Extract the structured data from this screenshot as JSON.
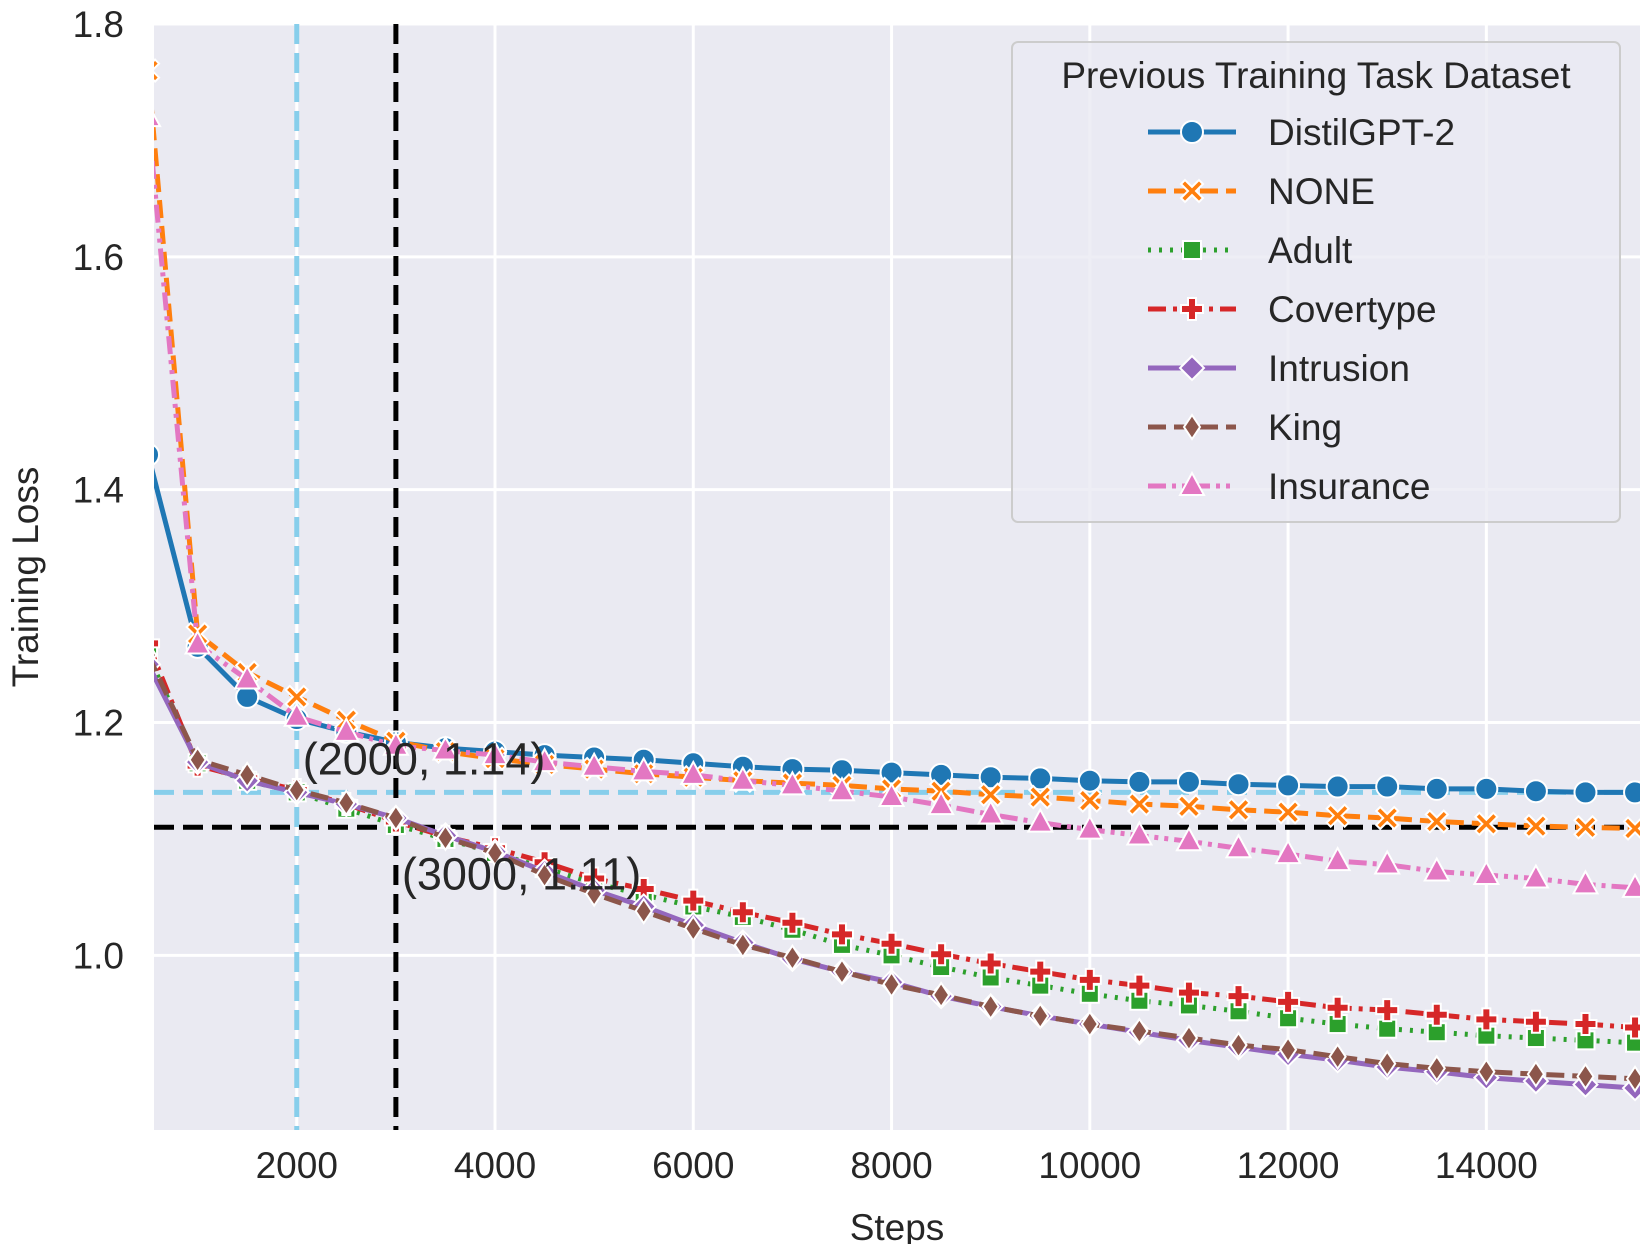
{
  "chart_data": {
    "type": "line",
    "title": "",
    "xlabel": "Steps",
    "ylabel": "Training Loss",
    "xlim": [
      560,
      15550
    ],
    "ylim": [
      0.85,
      1.8
    ],
    "xticks": [
      2000,
      4000,
      6000,
      8000,
      10000,
      12000,
      14000
    ],
    "xtick_labels": [
      "2000",
      "4000",
      "6000",
      "8000",
      "10000",
      "12000",
      "14000"
    ],
    "yticks": [
      1.0,
      1.2,
      1.4,
      1.6,
      1.8
    ],
    "ytick_labels": [
      "1.0",
      "1.2",
      "1.4",
      "1.6",
      "1.8"
    ],
    "grid": true,
    "legend": {
      "title": "Previous Training Task Dataset",
      "placement": "top-right"
    },
    "x": [
      500,
      1000,
      1500,
      2000,
      2500,
      3000,
      3500,
      4000,
      4500,
      5000,
      5500,
      6000,
      6500,
      7000,
      7500,
      8000,
      8500,
      9000,
      9500,
      10000,
      10500,
      11000,
      11500,
      12000,
      12500,
      13000,
      13500,
      14000,
      14500,
      15000,
      15500
    ],
    "series": [
      {
        "name": "DistilGPT-2",
        "color": "#1f77b4",
        "dash": "solid",
        "marker": "circle",
        "values": [
          1.43,
          1.265,
          1.222,
          1.203,
          1.192,
          1.183,
          1.178,
          1.175,
          1.172,
          1.17,
          1.168,
          1.165,
          1.162,
          1.16,
          1.159,
          1.157,
          1.155,
          1.153,
          1.152,
          1.15,
          1.149,
          1.149,
          1.147,
          1.146,
          1.145,
          1.145,
          1.143,
          1.143,
          1.141,
          1.14,
          1.14
        ]
      },
      {
        "name": "NONE",
        "color": "#ff7f0e",
        "dash": "dashed",
        "marker": "x",
        "values": [
          1.76,
          1.276,
          1.243,
          1.222,
          1.202,
          1.184,
          1.175,
          1.169,
          1.164,
          1.16,
          1.156,
          1.153,
          1.15,
          1.148,
          1.146,
          1.143,
          1.141,
          1.138,
          1.136,
          1.133,
          1.13,
          1.128,
          1.125,
          1.123,
          1.12,
          1.118,
          1.115,
          1.113,
          1.111,
          1.11,
          1.109
        ]
      },
      {
        "name": "Adult",
        "color": "#2ca02c",
        "dash": "dotted",
        "marker": "square",
        "values": [
          1.258,
          1.165,
          1.15,
          1.14,
          1.126,
          1.112,
          1.1,
          1.088,
          1.075,
          1.062,
          1.052,
          1.042,
          1.033,
          1.022,
          1.009,
          1.0,
          0.99,
          0.981,
          0.974,
          0.967,
          0.961,
          0.957,
          0.952,
          0.946,
          0.941,
          0.937,
          0.934,
          0.931,
          0.929,
          0.927,
          0.925
        ]
      },
      {
        "name": "Covertype",
        "color": "#d62728",
        "dash": "dashdot",
        "marker": "plus",
        "values": [
          1.268,
          1.163,
          1.152,
          1.142,
          1.13,
          1.115,
          1.102,
          1.092,
          1.08,
          1.066,
          1.057,
          1.047,
          1.037,
          1.028,
          1.018,
          1.01,
          1.001,
          0.993,
          0.986,
          0.979,
          0.974,
          0.968,
          0.965,
          0.96,
          0.955,
          0.953,
          0.949,
          0.945,
          0.943,
          0.941,
          0.938
        ]
      },
      {
        "name": "Intrusion",
        "color": "#9467bd",
        "dash": "solid",
        "marker": "diamond",
        "values": [
          1.25,
          1.166,
          1.15,
          1.14,
          1.13,
          1.118,
          1.103,
          1.089,
          1.072,
          1.056,
          1.042,
          1.026,
          1.011,
          0.997,
          0.986,
          0.977,
          0.965,
          0.956,
          0.948,
          0.941,
          0.934,
          0.927,
          0.921,
          0.915,
          0.91,
          0.904,
          0.9,
          0.895,
          0.892,
          0.889,
          0.886
        ]
      },
      {
        "name": "King",
        "color": "#8c564b",
        "dash": "dashed",
        "marker": "thin-diamond",
        "values": [
          1.258,
          1.168,
          1.155,
          1.142,
          1.131,
          1.118,
          1.101,
          1.088,
          1.069,
          1.053,
          1.038,
          1.023,
          1.009,
          0.998,
          0.986,
          0.975,
          0.966,
          0.956,
          0.948,
          0.941,
          0.935,
          0.929,
          0.923,
          0.919,
          0.913,
          0.907,
          0.903,
          0.9,
          0.898,
          0.896,
          0.894
        ]
      },
      {
        "name": "Insurance",
        "color": "#e377c2",
        "dash": "dashdotdot",
        "marker": "triangle",
        "values": [
          1.72,
          1.267,
          1.237,
          1.205,
          1.192,
          1.18,
          1.176,
          1.172,
          1.166,
          1.162,
          1.158,
          1.155,
          1.15,
          1.146,
          1.141,
          1.136,
          1.129,
          1.121,
          1.114,
          1.108,
          1.103,
          1.098,
          1.092,
          1.087,
          1.081,
          1.078,
          1.072,
          1.069,
          1.066,
          1.061,
          1.058
        ]
      }
    ],
    "reference_lines": [
      {
        "orientation": "vertical",
        "value": 2000,
        "color": "#87ceeb"
      },
      {
        "orientation": "horizontal",
        "value": 1.14,
        "color": "#87ceeb"
      },
      {
        "orientation": "vertical",
        "value": 3000,
        "color": "#000000"
      },
      {
        "orientation": "horizontal",
        "value": 1.11,
        "color": "#000000"
      }
    ],
    "annotations": [
      {
        "text": "(2000, 1.14)",
        "x": 2000,
        "y": 1.14
      },
      {
        "text": "(3000, 1.11)",
        "x": 3000,
        "y": 1.11
      }
    ]
  }
}
